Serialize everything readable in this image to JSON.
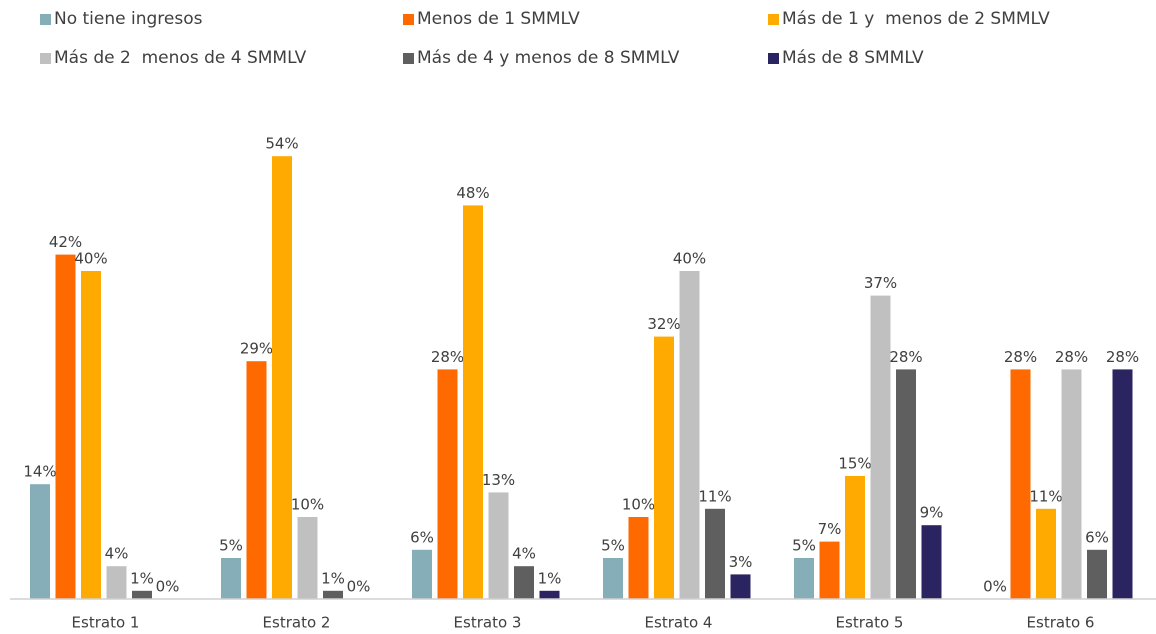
{
  "chart_data": {
    "type": "bar",
    "categories": [
      "Estrato 1",
      "Estrato 2",
      "Estrato 3",
      "Estrato 4",
      "Estrato 5",
      "Estrato 6"
    ],
    "series": [
      {
        "name": "No tiene ingresos",
        "color": "#86aeb8",
        "values": [
          14,
          5,
          6,
          5,
          5,
          0
        ],
        "value_labels": [
          "14%",
          "5%",
          "6%",
          "5%",
          "5%",
          "0%"
        ]
      },
      {
        "name": "Menos de 1 SMMLV",
        "color": "#ff6a00",
        "values": [
          42,
          29,
          28,
          10,
          7,
          28
        ],
        "value_labels": [
          "42%",
          "29%",
          "28%",
          "10%",
          "7%",
          "28%"
        ]
      },
      {
        "name": "Más de 1 y  menos de 2 SMMLV",
        "color": "#ffaa00",
        "values": [
          40,
          54,
          48,
          32,
          15,
          11
        ],
        "value_labels": [
          "40%",
          "54%",
          "48%",
          "32%",
          "15%",
          "11%"
        ]
      },
      {
        "name": "Más de 2  menos de 4 SMMLV",
        "color": "#c0c0c0",
        "values": [
          4,
          10,
          13,
          40,
          37,
          28
        ],
        "value_labels": [
          "4%",
          "10%",
          "13%",
          "40%",
          "37%",
          "28%"
        ]
      },
      {
        "name": "Más de 4 y menos de 8 SMMLV",
        "color": "#5f5f5f",
        "values": [
          1,
          1,
          4,
          11,
          28,
          6
        ],
        "value_labels": [
          "1%",
          "1%",
          "4%",
          "11%",
          "28%",
          "6%"
        ]
      },
      {
        "name": "Más de 8 SMMLV",
        "color": "#2a2560",
        "values": [
          0,
          0,
          1,
          3,
          9,
          28
        ],
        "value_labels": [
          "0%",
          "0%",
          "1%",
          "3%",
          "9%",
          "28%"
        ]
      }
    ],
    "ylim": [
      0,
      60
    ],
    "legend": "top"
  }
}
